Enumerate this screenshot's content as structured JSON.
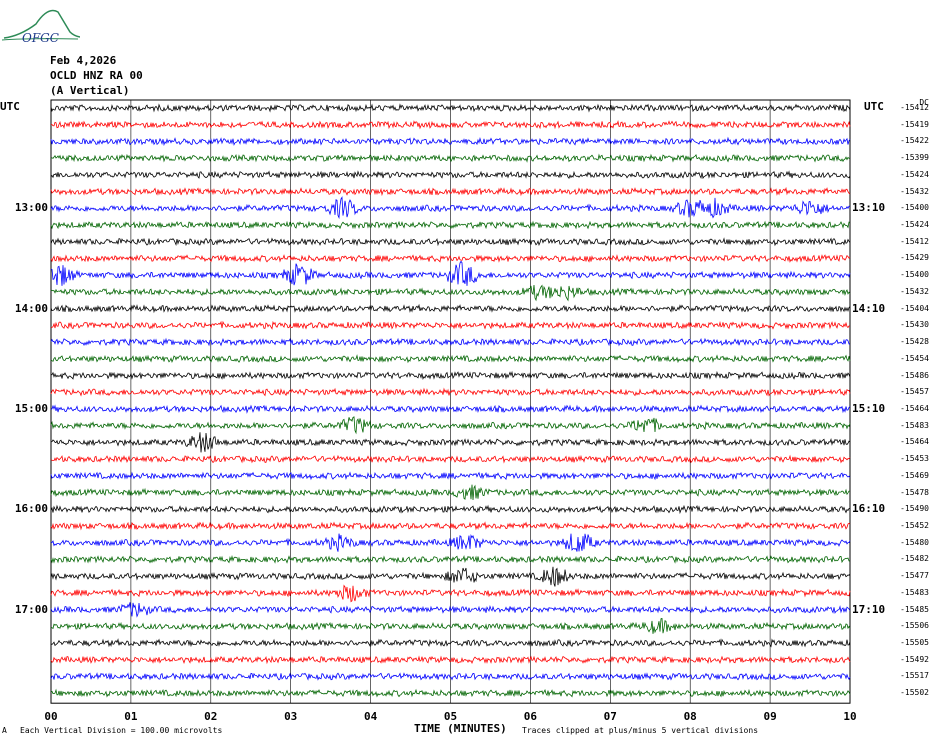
{
  "logo_text": "OFGC",
  "header": {
    "date": "Feb 4,2026",
    "station": "OCLD HNZ RA 00",
    "component": "(A Vertical)"
  },
  "utc_left": "UTC",
  "utc_right": "UTC",
  "right_header": "DC",
  "left_time_labels": [
    "13:00",
    "14:00",
    "15:00",
    "16:00",
    "17:00"
  ],
  "right_time_labels": [
    "13:10",
    "14:10",
    "15:10",
    "16:10",
    "17:10"
  ],
  "colors": {
    "trace_cycle": [
      "#000000",
      "#ff0000",
      "#0000ff",
      "#006400"
    ],
    "grid": "#000000",
    "logo": "#2e8b57"
  },
  "footer": {
    "x_axis_title": "TIME (MINUTES)",
    "scale_note": "Each Vertical Division =  100.00 microvolts",
    "clip_note": "Traces clipped at plus/minus 5 vertical divisions",
    "corner_mark": "A"
  },
  "chart_data": {
    "type": "line",
    "title": "OCLD HNZ RA 00 (A Vertical)",
    "xlabel": "TIME (MINUTES)",
    "ylabel": "",
    "xlim": [
      0,
      10
    ],
    "x_ticks": [
      "00",
      "01",
      "02",
      "03",
      "04",
      "05",
      "06",
      "07",
      "08",
      "09",
      "10"
    ],
    "rows_per_hour": 6,
    "minutes_per_row": 10,
    "trace_count": 36,
    "dc_offsets": [
      -15412,
      -15419,
      -15422,
      -15399,
      -15424,
      -15432,
      -15400,
      -15424,
      -15412,
      -15429,
      -15400,
      -15432,
      -15404,
      -15430,
      -15428,
      -15454,
      -15486,
      -15457,
      -15464,
      -15483,
      -15464,
      -15453,
      -15469,
      -15478,
      -15490,
      -15452,
      -15480,
      -15482,
      -15477,
      -15483,
      -15485,
      -15506,
      -15505,
      -15492,
      -15517,
      -15502
    ],
    "events": [
      {
        "row": 6,
        "minute": 3.65,
        "amp": 3
      },
      {
        "row": 6,
        "minute": 8.0,
        "amp": 2.5
      },
      {
        "row": 6,
        "minute": 8.3,
        "amp": 2.5
      },
      {
        "row": 6,
        "minute": 9.5,
        "amp": 2.5
      },
      {
        "row": 10,
        "minute": 0.1,
        "amp": 3.5
      },
      {
        "row": 10,
        "minute": 3.1,
        "amp": 3.5
      },
      {
        "row": 10,
        "minute": 5.15,
        "amp": 4
      },
      {
        "row": 11,
        "minute": 6.1,
        "amp": 2
      },
      {
        "row": 11,
        "minute": 6.45,
        "amp": 2
      },
      {
        "row": 19,
        "minute": 3.8,
        "amp": 2.5
      },
      {
        "row": 19,
        "minute": 7.45,
        "amp": 2.5
      },
      {
        "row": 20,
        "minute": 1.9,
        "amp": 3
      },
      {
        "row": 23,
        "minute": 5.25,
        "amp": 2
      },
      {
        "row": 26,
        "minute": 3.6,
        "amp": 2
      },
      {
        "row": 26,
        "minute": 5.2,
        "amp": 2.5
      },
      {
        "row": 26,
        "minute": 6.6,
        "amp": 3.5
      },
      {
        "row": 28,
        "minute": 5.15,
        "amp": 2.5
      },
      {
        "row": 28,
        "minute": 6.3,
        "amp": 3
      },
      {
        "row": 29,
        "minute": 3.75,
        "amp": 2.5
      },
      {
        "row": 30,
        "minute": 1.05,
        "amp": 2
      },
      {
        "row": 31,
        "minute": 7.6,
        "amp": 2
      }
    ]
  }
}
